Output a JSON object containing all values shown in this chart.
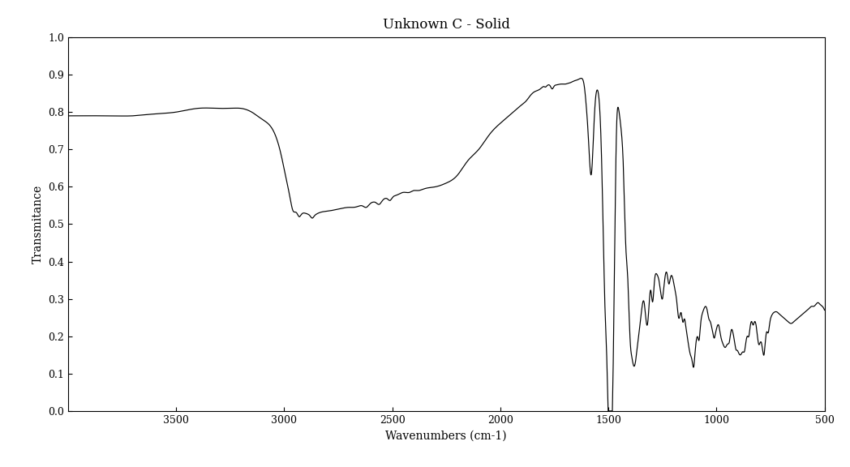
{
  "title": "Unknown C - Solid",
  "xlabel": "Wavenumbers (cm-1)",
  "ylabel": "Transmitance",
  "xlim": [
    500,
    4000
  ],
  "ylim": [
    0.0,
    1.0
  ],
  "xticks": [
    500,
    1000,
    1500,
    2000,
    2500,
    3000,
    3500
  ],
  "yticks": [
    0.0,
    0.1,
    0.2,
    0.3,
    0.4,
    0.5,
    0.6,
    0.7,
    0.8,
    0.9,
    1.0
  ],
  "line_color": "#000000",
  "background_color": "#ffffff",
  "title_fontsize": 12,
  "label_fontsize": 10
}
